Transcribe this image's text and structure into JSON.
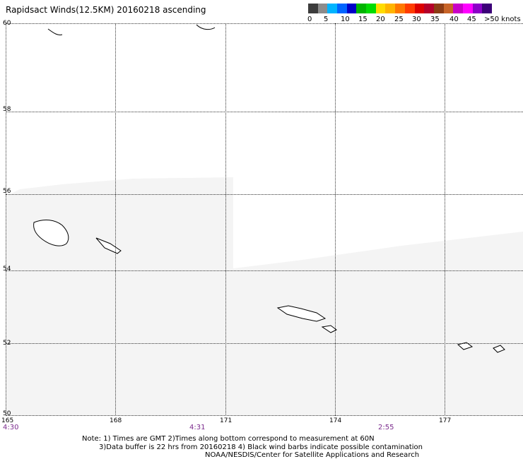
{
  "title": "Rapidsact Winds(12.5KM) 20160218 ascending",
  "colorbar": {
    "colors": [
      "#3c3c3c",
      "#8c8c8c",
      "#00b4ff",
      "#0064ff",
      "#0000c8",
      "#00b400",
      "#00dc00",
      "#ffdc00",
      "#ffb400",
      "#ff7800",
      "#ff3c00",
      "#dc0000",
      "#b4002a",
      "#8c3c14",
      "#c86428",
      "#c800c8",
      "#ff00ff",
      "#8c00c8",
      "#3c0078"
    ],
    "labels": [
      "0",
      "5",
      "10",
      "15",
      "20",
      "25",
      "30",
      "35",
      "40",
      "45",
      ">50 knots"
    ]
  },
  "lat_labels": [
    "60",
    "58",
    "56",
    "54",
    "52",
    "50"
  ],
  "lon_labels": [
    "165",
    "168",
    "171",
    "174",
    "177"
  ],
  "time_labels": [
    "4:30",
    "4:31",
    "2:55"
  ],
  "notes": [
    "Note: 1) Times are GMT 2)Times along bottom correspond to measurement at 60N",
    "3)Data buffer is 22 hrs from 20160218 4) Black wind barbs indicate possible contamination",
    "NOAA/NESDIS/Center for Satellite Applications and Research"
  ]
}
